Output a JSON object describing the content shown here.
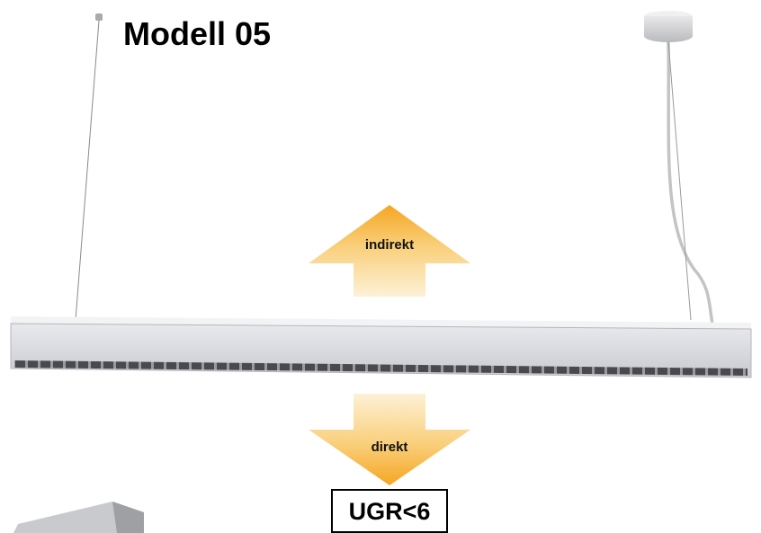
{
  "header": {
    "title": "Modell 05"
  },
  "labels": {
    "up": "indirekt",
    "down": "direkt",
    "rating": "UGR<6"
  }
}
